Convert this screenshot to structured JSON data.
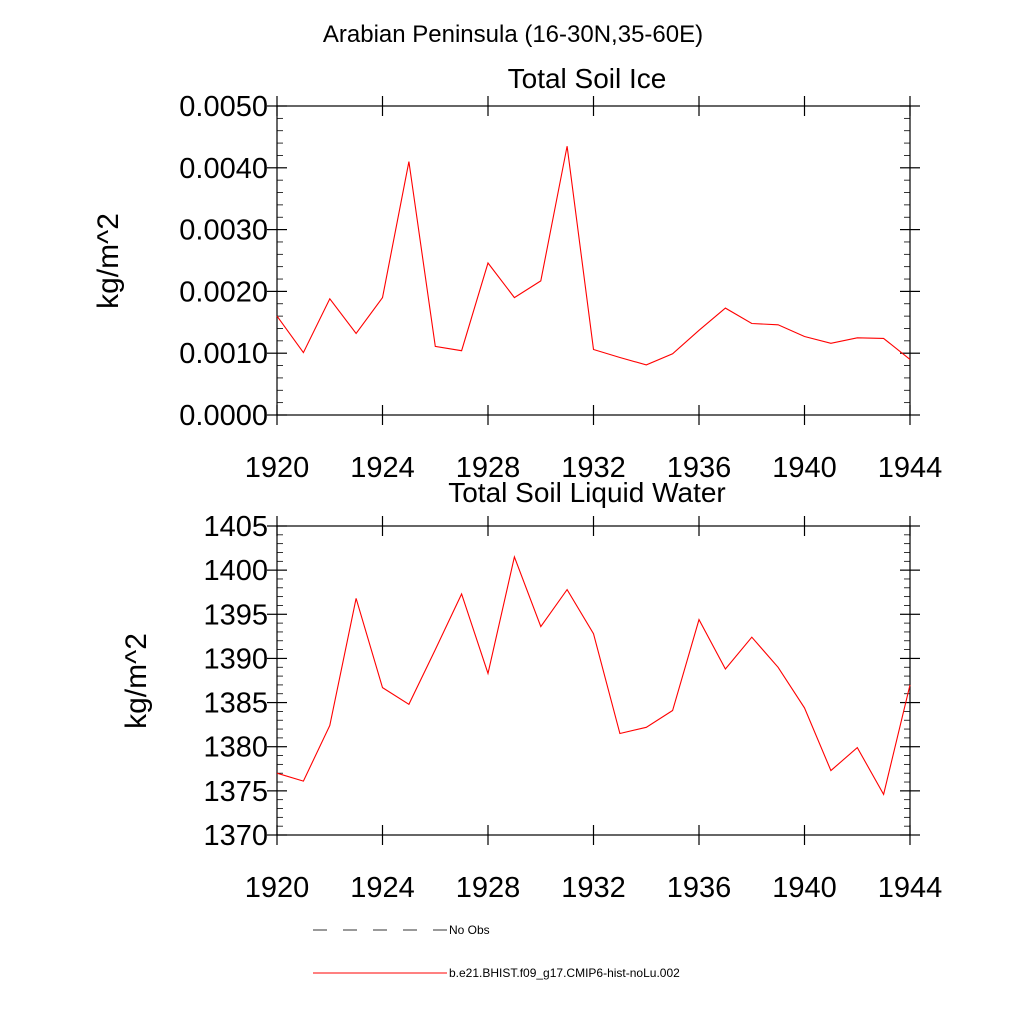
{
  "page": {
    "title": "Arabian Peninsula (16-30N,35-60E)"
  },
  "chart_data": [
    {
      "type": "line",
      "title": "Total Soil Ice",
      "xlabel": "",
      "ylabel": "kg/m^2",
      "xlim": [
        1920,
        1944
      ],
      "ylim": [
        0,
        0.005
      ],
      "x_ticks": [
        "1920",
        "1924",
        "1928",
        "1932",
        "1936",
        "1940",
        "1944"
      ],
      "y_ticks": [
        "0.0000",
        "0.0010",
        "0.0020",
        "0.0030",
        "0.0040",
        "0.0050"
      ],
      "grid": false,
      "series": [
        {
          "name": "b.e21.BHIST.f09_g17.CMIP6-hist-noLu.002",
          "color": "#ff0000",
          "x": [
            1920,
            1921,
            1922,
            1923,
            1924,
            1925,
            1926,
            1927,
            1928,
            1929,
            1930,
            1931,
            1932,
            1933,
            1934,
            1935,
            1936,
            1937,
            1938,
            1939,
            1940,
            1941,
            1942,
            1943,
            1944
          ],
          "values": [
            0.0016,
            0.00101,
            0.00188,
            0.00132,
            0.0019,
            0.0041,
            0.00111,
            0.00104,
            0.00246,
            0.0019,
            0.00217,
            0.00435,
            0.00106,
            0.00093,
            0.00081,
            0.00099,
            0.00137,
            0.00173,
            0.00148,
            0.00146,
            0.00127,
            0.00116,
            0.00125,
            0.00124,
            0.0009
          ]
        }
      ]
    },
    {
      "type": "line",
      "title": "Total Soil Liquid Water",
      "xlabel": "",
      "ylabel": "kg/m^2",
      "xlim": [
        1920,
        1944
      ],
      "ylim": [
        1370,
        1405
      ],
      "x_ticks": [
        "1920",
        "1924",
        "1928",
        "1932",
        "1936",
        "1940",
        "1944"
      ],
      "y_ticks": [
        "1370",
        "1375",
        "1380",
        "1385",
        "1390",
        "1395",
        "1400",
        "1405"
      ],
      "grid": false,
      "series": [
        {
          "name": "b.e21.BHIST.f09_g17.CMIP6-hist-noLu.002",
          "color": "#ff0000",
          "x": [
            1920,
            1921,
            1922,
            1923,
            1924,
            1925,
            1926,
            1927,
            1928,
            1929,
            1930,
            1931,
            1932,
            1933,
            1934,
            1935,
            1936,
            1937,
            1938,
            1939,
            1940,
            1941,
            1942,
            1943,
            1944
          ],
          "values": [
            1377.0,
            1376.1,
            1382.4,
            1396.8,
            1386.7,
            1384.8,
            1391.0,
            1397.3,
            1388.3,
            1401.5,
            1393.6,
            1397.8,
            1392.8,
            1381.5,
            1382.2,
            1384.1,
            1394.4,
            1388.8,
            1392.4,
            1389.0,
            1384.4,
            1377.3,
            1379.9,
            1374.6,
            1387.0
          ]
        }
      ]
    }
  ],
  "legend": {
    "placement": "bottom",
    "items": [
      {
        "label": "No Obs",
        "color": "#333333",
        "style": "dashed"
      },
      {
        "label": "b.e21.BHIST.f09_g17.CMIP6-hist-noLu.002",
        "color": "#ff0000",
        "style": "solid"
      }
    ]
  }
}
